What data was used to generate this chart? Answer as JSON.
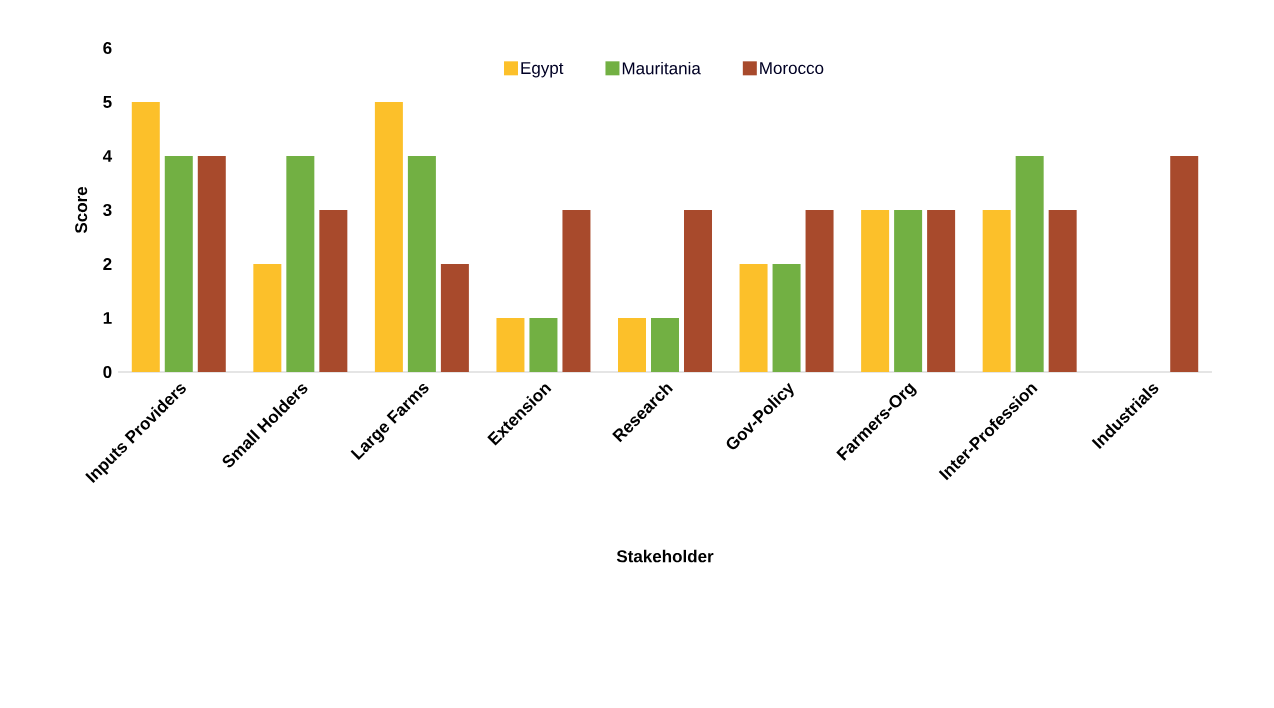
{
  "chart_data": {
    "type": "bar",
    "xlabel": "Stakeholder",
    "ylabel": "Score",
    "categories": [
      "Inputs Providers",
      "Small Holders",
      "Large Farms",
      "Extension",
      "Research",
      "Gov-Policy",
      "Farmers-Org",
      "Inter-Profession",
      "Industrials"
    ],
    "series": [
      {
        "name": "Egypt",
        "color": "#fcc02a",
        "values": [
          5,
          2,
          5,
          1,
          1,
          2,
          3,
          3,
          null
        ]
      },
      {
        "name": "Mauritania",
        "color": "#72b043",
        "values": [
          4,
          4,
          4,
          1,
          1,
          2,
          3,
          4,
          null
        ]
      },
      {
        "name": "Morocco",
        "color": "#a84a2c",
        "values": [
          4,
          3,
          2,
          3,
          3,
          3,
          3,
          3,
          4
        ]
      }
    ],
    "ylim": [
      0,
      6
    ],
    "yticks": [
      0,
      1,
      2,
      3,
      4,
      5,
      6
    ],
    "grid": false,
    "legend": "top"
  }
}
